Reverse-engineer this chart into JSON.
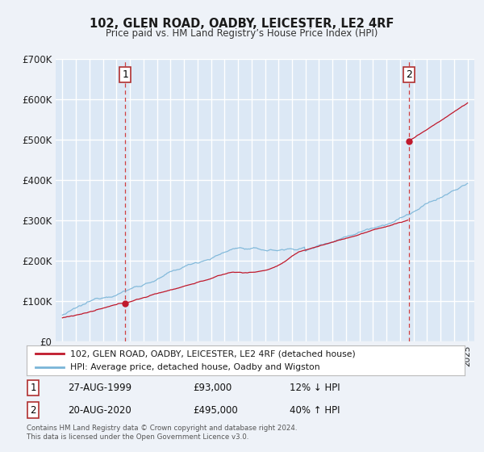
{
  "title": "102, GLEN ROAD, OADBY, LEICESTER, LE2 4RF",
  "subtitle": "Price paid vs. HM Land Registry’s House Price Index (HPI)",
  "bg_color": "#eef2f8",
  "plot_bg_color": "#dce8f5",
  "grid_color": "#ffffff",
  "sale1_date": 1999.648,
  "sale1_price": 93000,
  "sale2_date": 2020.638,
  "sale2_price": 495000,
  "hpi_color": "#7ab5d8",
  "price_color": "#c0192c",
  "vline_color": "#d04040",
  "box_edge_color": "#b03030",
  "ylim": [
    0,
    700000
  ],
  "xlim_start": 1994.5,
  "xlim_end": 2025.5,
  "ytick_labels": [
    "£0",
    "£100K",
    "£200K",
    "£300K",
    "£400K",
    "£500K",
    "£600K",
    "£700K"
  ],
  "ytick_values": [
    0,
    100000,
    200000,
    300000,
    400000,
    500000,
    600000,
    700000
  ],
  "legend_label1": "102, GLEN ROAD, OADBY, LEICESTER, LE2 4RF (detached house)",
  "legend_label2": "HPI: Average price, detached house, Oadby and Wigston",
  "ann1_date": "27-AUG-1999",
  "ann1_price": "£93,000",
  "ann1_hpi": "12% ↓ HPI",
  "ann2_date": "20-AUG-2020",
  "ann2_price": "£495,000",
  "ann2_hpi": "40% ↑ HPI",
  "footer": "Contains HM Land Registry data © Crown copyright and database right 2024.\nThis data is licensed under the Open Government Licence v3.0."
}
